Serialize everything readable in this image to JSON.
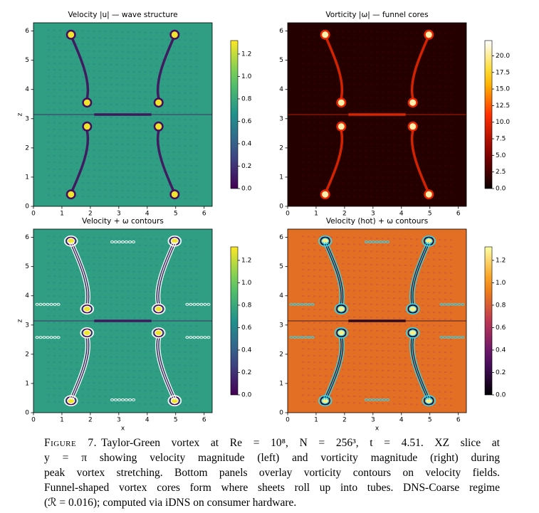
{
  "chart_data": [
    {
      "type": "heatmap",
      "title": "Velocity |u| — wave structure",
      "ylabel": "z",
      "colormap": "viridis",
      "contours": false,
      "xlim": [
        0,
        6.283
      ],
      "ylim": [
        0,
        6.283
      ],
      "xticks": [
        0,
        1,
        2,
        3,
        4,
        5,
        6
      ],
      "yticks": [
        0,
        1,
        2,
        3,
        4,
        5,
        6
      ],
      "clim": [
        0,
        1.32
      ],
      "cticks": [
        {
          "value": 0,
          "label": "0.0"
        },
        0.2,
        0.4,
        0.6,
        0.8,
        {
          "value": 1,
          "label": "1.0"
        },
        1.2
      ]
    },
    {
      "type": "heatmap",
      "title": "Vorticity |ω| — funnel cores",
      "colormap": "hot",
      "contours": false,
      "xlim": [
        0,
        6.283
      ],
      "ylim": [
        0,
        6.283
      ],
      "xticks": [
        0,
        1,
        2,
        3,
        4,
        5,
        6
      ],
      "yticks": [
        0,
        1,
        2,
        3,
        4,
        5,
        6
      ],
      "clim": [
        0,
        22.3
      ],
      "cticks": [
        {
          "value": 0,
          "label": "0.0"
        },
        2.5,
        {
          "value": 5,
          "label": "5.0"
        },
        7.5,
        {
          "value": 10,
          "label": "10.0"
        },
        12.5,
        {
          "value": 15,
          "label": "15.0"
        },
        17.5,
        {
          "value": 20,
          "label": "20.0"
        }
      ]
    },
    {
      "type": "heatmap",
      "title": "Velocity + ω contours",
      "xlabel": "x",
      "ylabel": "z",
      "colormap": "viridis",
      "contours": true,
      "contour_color": "#ffffff",
      "xlim": [
        0,
        6.283
      ],
      "ylim": [
        0,
        6.283
      ],
      "xticks": [
        0,
        1,
        2,
        3,
        4,
        5,
        6
      ],
      "yticks": [
        0,
        1,
        2,
        3,
        4,
        5,
        6
      ],
      "clim": [
        0,
        1.32
      ],
      "cticks": [
        {
          "value": 0,
          "label": "0.0"
        },
        0.2,
        0.4,
        0.6,
        0.8,
        {
          "value": 1,
          "label": "1.0"
        },
        1.2
      ]
    },
    {
      "type": "heatmap",
      "title": "Velocity (hot) + ω contours",
      "xlabel": "x",
      "colormap": "inferno",
      "contours": true,
      "contour_color": "#33d6ec",
      "xlim": [
        0,
        6.283
      ],
      "ylim": [
        0,
        6.283
      ],
      "xticks": [
        0,
        1,
        2,
        3,
        4,
        5,
        6
      ],
      "yticks": [
        0,
        1,
        2,
        3,
        4,
        5,
        6
      ],
      "clim": [
        0,
        1.32
      ],
      "cticks": [
        {
          "value": 0,
          "label": "0.0"
        },
        0.2,
        0.4,
        0.6,
        0.8,
        {
          "value": 1,
          "label": "1.0"
        },
        1.2
      ]
    }
  ],
  "caption": {
    "label": "Figure 7.",
    "lines": [
      "Taylor-Green vortex at Re = 10⁸, N = 256³, t = 4.51. XZ slice at",
      "y = π showing velocity magnitude (left) and vorticity magnitude (right) during",
      "peak vortex stretching. Bottom panels overlay vorticity contours on velocity fields.",
      "Funnel-shaped vortex cores form where sheets roll up into tubes. DNS-Coarse regime",
      "(ℛ = 0.016); computed via iDNS on consumer hardware."
    ]
  }
}
